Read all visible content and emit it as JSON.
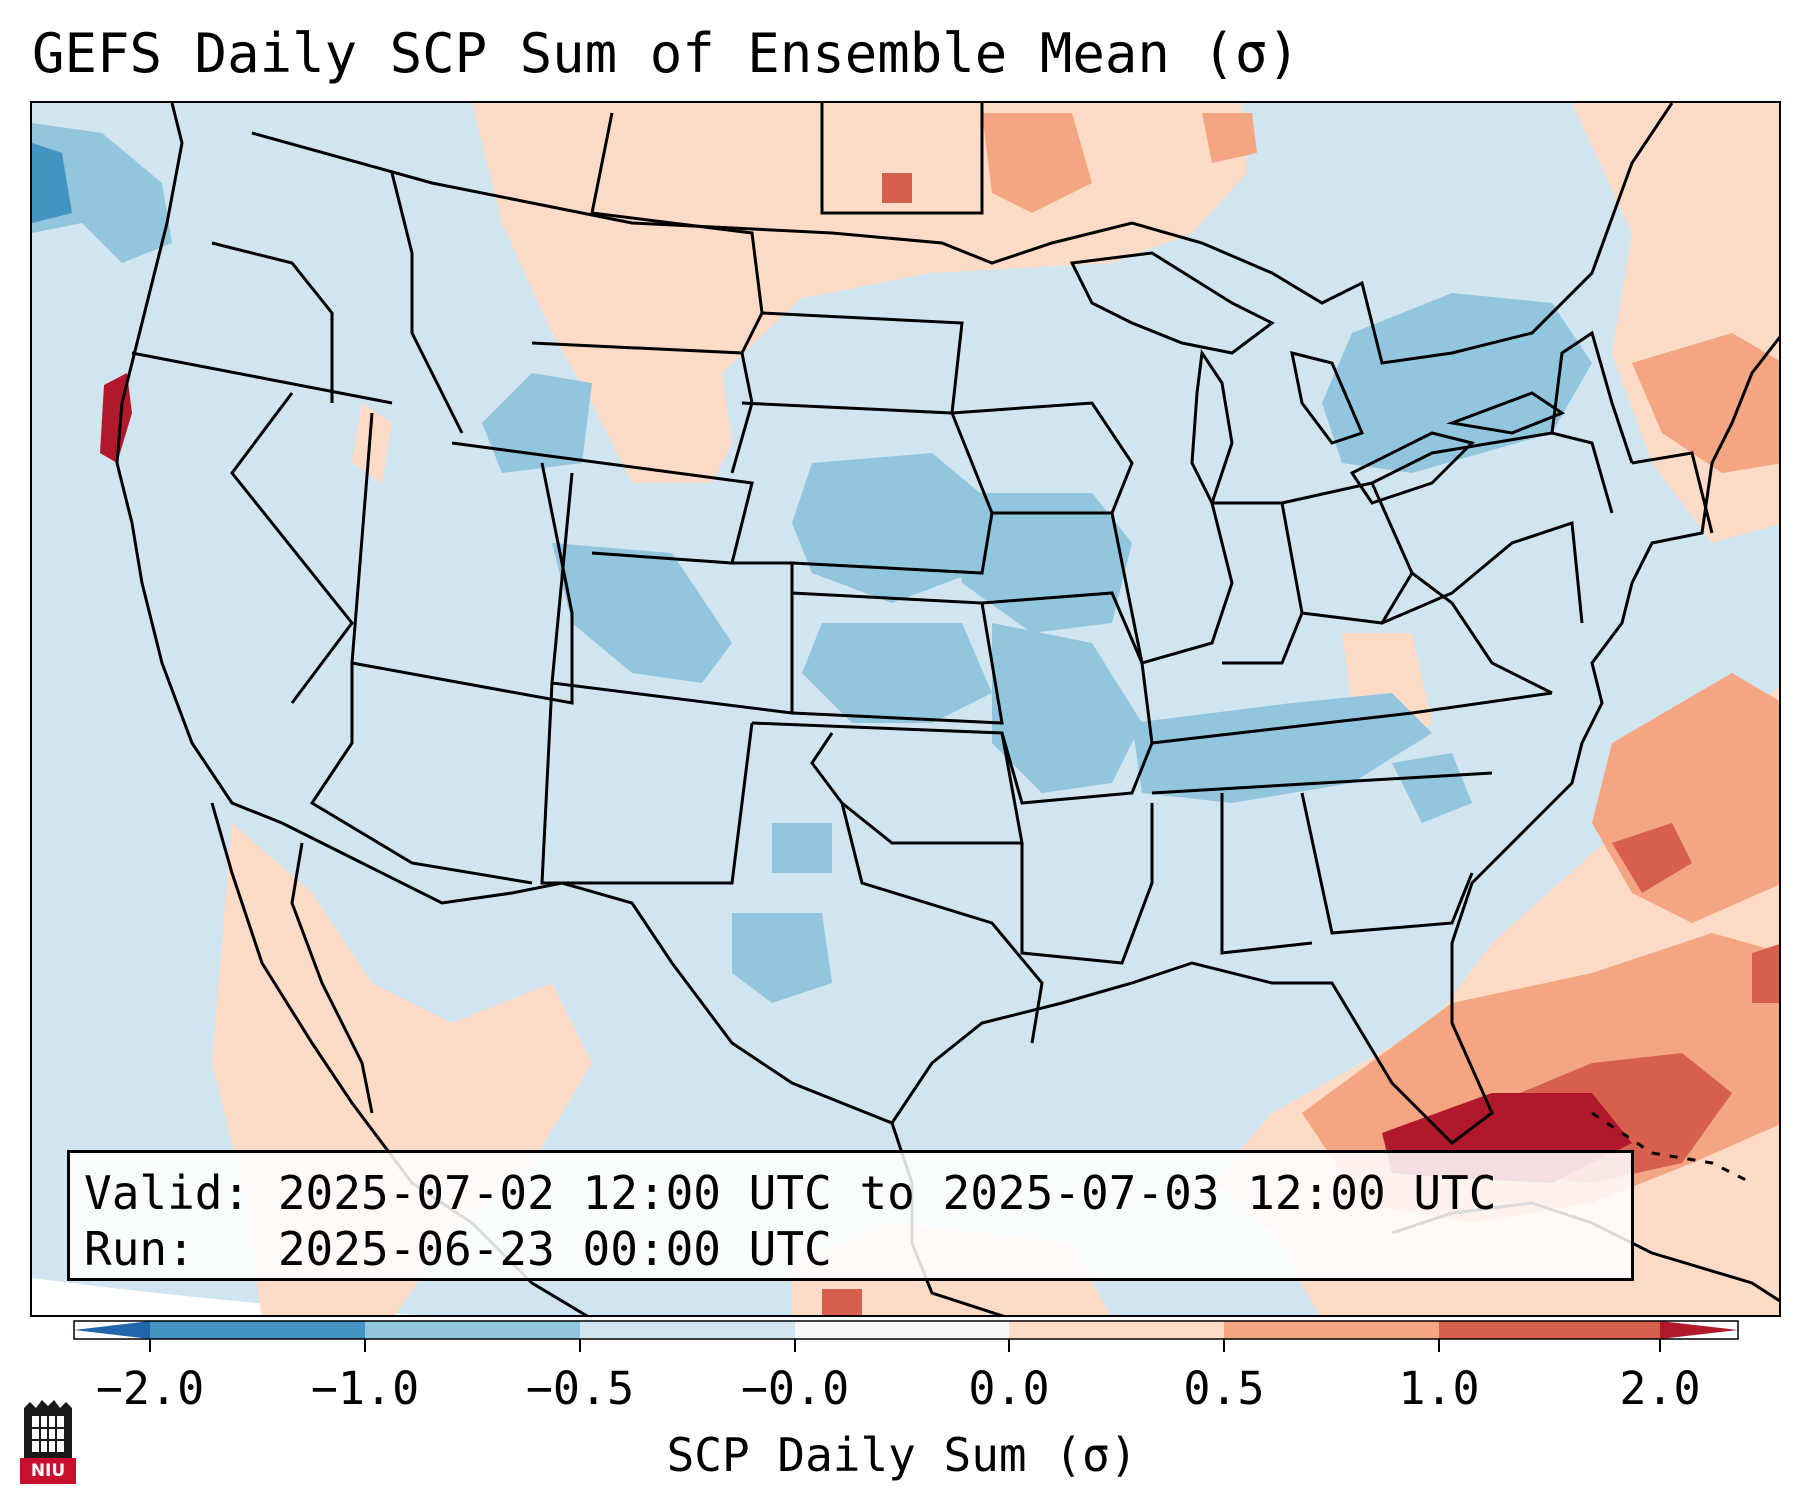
{
  "title": "GEFS Daily SCP Sum of Ensemble Mean (σ)",
  "info": {
    "valid_line": "Valid: 2025-07-02 12:00 UTC to 2025-07-03 12:00 UTC",
    "run_line": "Run:   2025-06-23 00:00 UTC"
  },
  "colorbar": {
    "label": "SCP Daily Sum (σ)",
    "ticks": [
      "−2.0",
      "−1.0",
      "−0.5",
      "−0.0",
      "0.0",
      "0.5",
      "1.0",
      "2.0"
    ],
    "colors": [
      "#4393c3",
      "#92c5de",
      "#d1e5f0",
      "#f7f7f7",
      "#fddbc7",
      "#f4a582",
      "#d6604d"
    ],
    "extend_low_color": "#2166ac",
    "extend_high_color": "#b2182b"
  },
  "logo": {
    "text": "NIU"
  },
  "palette": {
    "ocean_bg": "#d1e5f0",
    "outside_domain": "#ffffff",
    "pos_weak": "#fddbc7",
    "pos_mod": "#f4a582",
    "pos_strong": "#d6604d",
    "pos_max": "#b2182b",
    "neg_mod": "#92c5de",
    "neg_strong": "#4393c3",
    "border": "#000000"
  }
}
